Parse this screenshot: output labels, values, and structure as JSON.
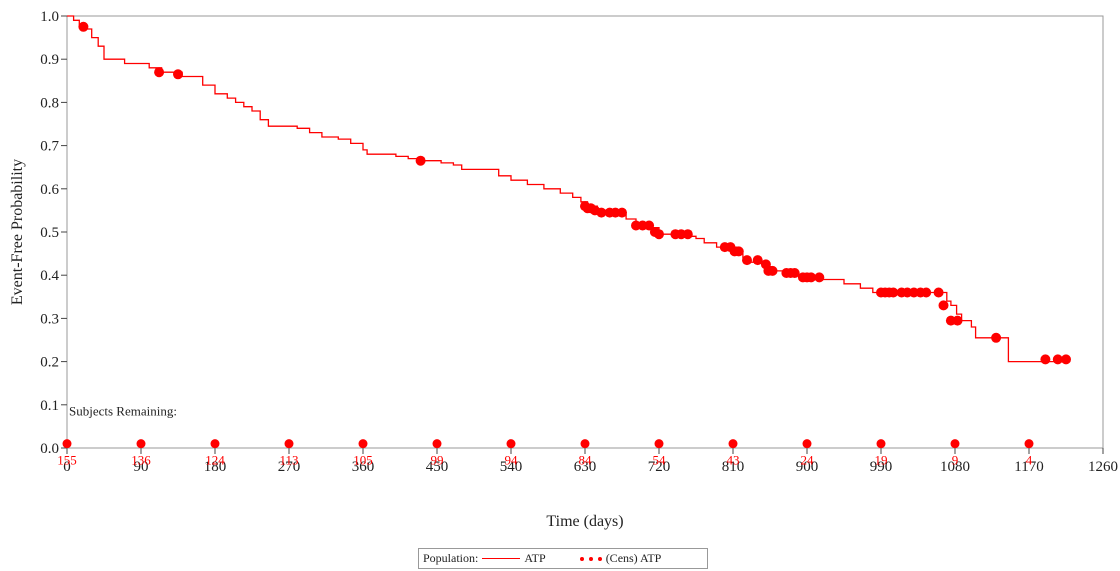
{
  "chart_data": {
    "type": "line",
    "xlabel": "Time (days)",
    "ylabel": "Event-Free Probability",
    "xlim": [
      0,
      1260
    ],
    "ylim": [
      0,
      1.0
    ],
    "x_ticks": [
      0,
      90,
      180,
      270,
      360,
      450,
      540,
      630,
      720,
      810,
      900,
      990,
      1080,
      1170,
      1260
    ],
    "y_ticks": [
      0.0,
      0.1,
      0.2,
      0.3,
      0.4,
      0.5,
      0.6,
      0.7,
      0.8,
      0.9,
      1.0
    ],
    "y_tick_labels": [
      "0.0",
      "0.1",
      "0.2",
      "0.3",
      "0.4",
      "0.5",
      "0.6",
      "0.7",
      "0.8",
      "0.9",
      "1.0"
    ],
    "grid": false,
    "legend_position": "bottom",
    "colors": {
      "series": "#ff0000",
      "axis": "#222222"
    },
    "series": [
      {
        "name": "ATP",
        "style": "step",
        "points": [
          [
            0,
            1.0
          ],
          [
            8,
            0.99
          ],
          [
            15,
            0.98
          ],
          [
            22,
            0.97
          ],
          [
            30,
            0.95
          ],
          [
            38,
            0.93
          ],
          [
            45,
            0.9
          ],
          [
            70,
            0.89
          ],
          [
            100,
            0.88
          ],
          [
            115,
            0.87
          ],
          [
            140,
            0.86
          ],
          [
            165,
            0.84
          ],
          [
            180,
            0.82
          ],
          [
            195,
            0.81
          ],
          [
            205,
            0.8
          ],
          [
            215,
            0.79
          ],
          [
            225,
            0.78
          ],
          [
            235,
            0.76
          ],
          [
            245,
            0.745
          ],
          [
            280,
            0.74
          ],
          [
            295,
            0.73
          ],
          [
            310,
            0.72
          ],
          [
            330,
            0.715
          ],
          [
            345,
            0.705
          ],
          [
            360,
            0.69
          ],
          [
            365,
            0.68
          ],
          [
            400,
            0.675
          ],
          [
            415,
            0.67
          ],
          [
            430,
            0.665
          ],
          [
            455,
            0.66
          ],
          [
            470,
            0.655
          ],
          [
            480,
            0.645
          ],
          [
            525,
            0.63
          ],
          [
            540,
            0.62
          ],
          [
            560,
            0.61
          ],
          [
            580,
            0.6
          ],
          [
            600,
            0.59
          ],
          [
            615,
            0.58
          ],
          [
            625,
            0.57
          ],
          [
            633,
            0.56
          ],
          [
            645,
            0.55
          ],
          [
            655,
            0.54
          ],
          [
            680,
            0.53
          ],
          [
            692,
            0.52
          ],
          [
            710,
            0.51
          ],
          [
            720,
            0.495
          ],
          [
            750,
            0.49
          ],
          [
            765,
            0.485
          ],
          [
            775,
            0.475
          ],
          [
            790,
            0.465
          ],
          [
            815,
            0.45
          ],
          [
            822,
            0.44
          ],
          [
            830,
            0.43
          ],
          [
            848,
            0.42
          ],
          [
            857,
            0.41
          ],
          [
            880,
            0.4
          ],
          [
            890,
            0.395
          ],
          [
            920,
            0.39
          ],
          [
            945,
            0.38
          ],
          [
            965,
            0.37
          ],
          [
            980,
            0.36
          ],
          [
            1000,
            0.355
          ],
          [
            1018,
            0.36
          ],
          [
            1060,
            0.36
          ],
          [
            1070,
            0.34
          ],
          [
            1075,
            0.33
          ],
          [
            1082,
            0.31
          ],
          [
            1088,
            0.295
          ],
          [
            1100,
            0.28
          ],
          [
            1105,
            0.255
          ],
          [
            1120,
            0.255
          ],
          [
            1135,
            0.255
          ],
          [
            1145,
            0.2
          ],
          [
            1220,
            0.2
          ]
        ]
      },
      {
        "name": "(Cens) ATP",
        "style": "markers",
        "points": [
          [
            20,
            0.975
          ],
          [
            112,
            0.87
          ],
          [
            135,
            0.865
          ],
          [
            430,
            0.665
          ],
          [
            630,
            0.56
          ],
          [
            633,
            0.555
          ],
          [
            637,
            0.555
          ],
          [
            642,
            0.55
          ],
          [
            650,
            0.545
          ],
          [
            660,
            0.545
          ],
          [
            667,
            0.545
          ],
          [
            675,
            0.545
          ],
          [
            692,
            0.515
          ],
          [
            700,
            0.515
          ],
          [
            708,
            0.515
          ],
          [
            715,
            0.5
          ],
          [
            720,
            0.495
          ],
          [
            740,
            0.495
          ],
          [
            747,
            0.495
          ],
          [
            755,
            0.495
          ],
          [
            800,
            0.465
          ],
          [
            807,
            0.465
          ],
          [
            812,
            0.455
          ],
          [
            817,
            0.455
          ],
          [
            827,
            0.435
          ],
          [
            840,
            0.435
          ],
          [
            850,
            0.425
          ],
          [
            853,
            0.41
          ],
          [
            858,
            0.41
          ],
          [
            875,
            0.405
          ],
          [
            880,
            0.405
          ],
          [
            885,
            0.405
          ],
          [
            895,
            0.395
          ],
          [
            900,
            0.395
          ],
          [
            905,
            0.395
          ],
          [
            915,
            0.395
          ],
          [
            990,
            0.36
          ],
          [
            995,
            0.36
          ],
          [
            1000,
            0.36
          ],
          [
            1005,
            0.36
          ],
          [
            1015,
            0.36
          ],
          [
            1022,
            0.36
          ],
          [
            1030,
            0.36
          ],
          [
            1038,
            0.36
          ],
          [
            1045,
            0.36
          ],
          [
            1060,
            0.36
          ],
          [
            1066,
            0.33
          ],
          [
            1075,
            0.295
          ],
          [
            1083,
            0.295
          ],
          [
            1130,
            0.255
          ],
          [
            1190,
            0.205
          ],
          [
            1205,
            0.205
          ],
          [
            1215,
            0.205
          ]
        ]
      }
    ],
    "at_risk": {
      "title": "Subjects Remaining:",
      "y": 0.01,
      "items": [
        {
          "x": 0,
          "label": "155"
        },
        {
          "x": 90,
          "label": "136"
        },
        {
          "x": 180,
          "label": "124"
        },
        {
          "x": 270,
          "label": "113"
        },
        {
          "x": 360,
          "label": "105"
        },
        {
          "x": 450,
          "label": "99"
        },
        {
          "x": 540,
          "label": "94"
        },
        {
          "x": 630,
          "label": "84"
        },
        {
          "x": 720,
          "label": "54"
        },
        {
          "x": 810,
          "label": "43"
        },
        {
          "x": 900,
          "label": "24"
        },
        {
          "x": 990,
          "label": "19"
        },
        {
          "x": 1080,
          "label": "9"
        },
        {
          "x": 1170,
          "label": "4"
        }
      ]
    }
  },
  "legend": {
    "prefix": "Population:",
    "line_label": "ATP",
    "marker_label": "(Cens) ATP"
  }
}
